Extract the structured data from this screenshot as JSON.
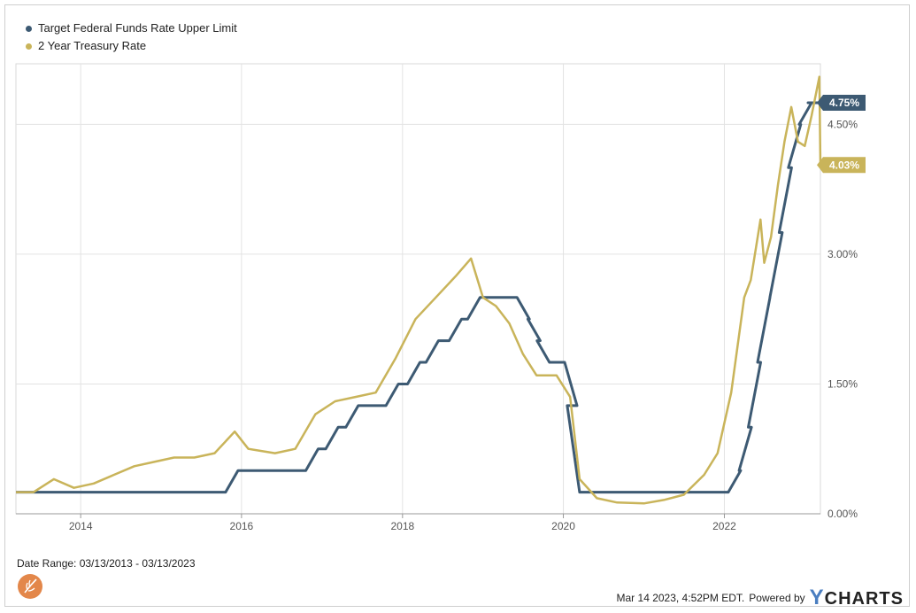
{
  "legend": {
    "items": [
      {
        "label": "Target Federal Funds Rate Upper Limit",
        "color": "#3d5a73"
      },
      {
        "label": "2 Year Treasury Rate",
        "color": "#c9b45a"
      }
    ]
  },
  "footer": {
    "date_range": "Date Range: 03/13/2013 - 03/13/2023",
    "timestamp": "Mar 14 2023, 4:52PM EDT.",
    "powered_by": "Powered by",
    "brand_y": "Y",
    "brand_rest": "CHARTS"
  },
  "chart_data": {
    "type": "line",
    "x_type": "date",
    "xlim": [
      "2013-03-13",
      "2023-03-13"
    ],
    "ylim": [
      0,
      5.2
    ],
    "x_ticks": [
      {
        "x": "2014-01-01",
        "label": "2014"
      },
      {
        "x": "2016-01-01",
        "label": "2016"
      },
      {
        "x": "2018-01-01",
        "label": "2018"
      },
      {
        "x": "2020-01-01",
        "label": "2020"
      },
      {
        "x": "2022-01-01",
        "label": "2022"
      }
    ],
    "y_ticks": [
      {
        "y": 0,
        "label": "0.00%"
      },
      {
        "y": 1.5,
        "label": "1.50%"
      },
      {
        "y": 3.0,
        "label": "3.00%"
      },
      {
        "y": 4.5,
        "label": "4.50%"
      }
    ],
    "grid": true,
    "legend_position": "top-left",
    "series": [
      {
        "name": "Target Federal Funds Rate Upper Limit",
        "color": "#3d5a73",
        "end_label": "4.75%",
        "step": true,
        "points": [
          [
            "2013-03-13",
            0.25
          ],
          [
            "2015-12-16",
            0.5
          ],
          [
            "2016-12-14",
            0.75
          ],
          [
            "2017-03-15",
            1.0
          ],
          [
            "2017-06-14",
            1.25
          ],
          [
            "2017-12-13",
            1.5
          ],
          [
            "2018-03-21",
            1.75
          ],
          [
            "2018-06-13",
            2.0
          ],
          [
            "2018-09-26",
            2.25
          ],
          [
            "2018-12-19",
            2.5
          ],
          [
            "2019-07-31",
            2.25
          ],
          [
            "2019-09-18",
            2.0
          ],
          [
            "2019-10-30",
            1.75
          ],
          [
            "2020-03-03",
            1.25
          ],
          [
            "2020-03-15",
            0.25
          ],
          [
            "2022-03-16",
            0.5
          ],
          [
            "2022-05-04",
            1.0
          ],
          [
            "2022-06-15",
            1.75
          ],
          [
            "2022-07-27",
            2.5
          ],
          [
            "2022-09-21",
            3.25
          ],
          [
            "2022-11-02",
            4.0
          ],
          [
            "2022-12-14",
            4.5
          ],
          [
            "2023-02-01",
            4.75
          ],
          [
            "2023-03-13",
            4.75
          ]
        ]
      },
      {
        "name": "2 Year Treasury Rate",
        "color": "#c9b45a",
        "end_label": "4.03%",
        "step": false,
        "points": [
          [
            "2013-03-13",
            0.25
          ],
          [
            "2013-06-01",
            0.25
          ],
          [
            "2013-09-01",
            0.4
          ],
          [
            "2013-12-01",
            0.3
          ],
          [
            "2014-03-01",
            0.35
          ],
          [
            "2014-06-01",
            0.45
          ],
          [
            "2014-09-01",
            0.55
          ],
          [
            "2014-12-01",
            0.6
          ],
          [
            "2015-03-01",
            0.65
          ],
          [
            "2015-06-01",
            0.65
          ],
          [
            "2015-09-01",
            0.7
          ],
          [
            "2015-12-01",
            0.95
          ],
          [
            "2016-02-01",
            0.75
          ],
          [
            "2016-06-01",
            0.7
          ],
          [
            "2016-09-01",
            0.75
          ],
          [
            "2016-12-01",
            1.15
          ],
          [
            "2017-03-01",
            1.3
          ],
          [
            "2017-06-01",
            1.35
          ],
          [
            "2017-09-01",
            1.4
          ],
          [
            "2017-12-01",
            1.8
          ],
          [
            "2018-03-01",
            2.25
          ],
          [
            "2018-06-01",
            2.5
          ],
          [
            "2018-09-01",
            2.75
          ],
          [
            "2018-11-08",
            2.95
          ],
          [
            "2019-01-01",
            2.5
          ],
          [
            "2019-03-01",
            2.4
          ],
          [
            "2019-05-01",
            2.2
          ],
          [
            "2019-07-01",
            1.85
          ],
          [
            "2019-09-01",
            1.6
          ],
          [
            "2019-12-01",
            1.6
          ],
          [
            "2020-02-01",
            1.35
          ],
          [
            "2020-03-15",
            0.4
          ],
          [
            "2020-06-01",
            0.18
          ],
          [
            "2020-09-01",
            0.13
          ],
          [
            "2021-01-01",
            0.12
          ],
          [
            "2021-04-01",
            0.16
          ],
          [
            "2021-07-01",
            0.22
          ],
          [
            "2021-10-01",
            0.45
          ],
          [
            "2021-12-01",
            0.7
          ],
          [
            "2022-02-01",
            1.4
          ],
          [
            "2022-04-01",
            2.5
          ],
          [
            "2022-05-01",
            2.7
          ],
          [
            "2022-06-14",
            3.4
          ],
          [
            "2022-07-01",
            2.9
          ],
          [
            "2022-08-01",
            3.2
          ],
          [
            "2022-09-01",
            3.8
          ],
          [
            "2022-10-01",
            4.3
          ],
          [
            "2022-11-01",
            4.7
          ],
          [
            "2022-12-01",
            4.3
          ],
          [
            "2023-01-01",
            4.25
          ],
          [
            "2023-02-01",
            4.6
          ],
          [
            "2023-03-08",
            5.05
          ],
          [
            "2023-03-13",
            4.03
          ]
        ]
      }
    ]
  }
}
